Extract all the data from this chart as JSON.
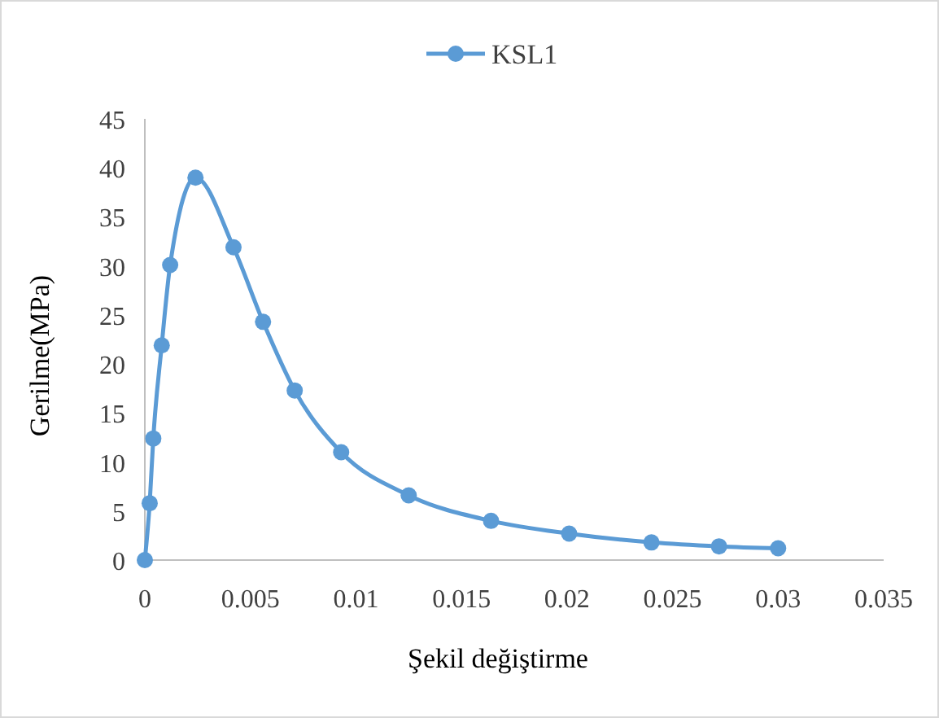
{
  "chart_data": {
    "type": "line",
    "xlabel": "Şekil değiştirme",
    "ylabel": "Gerilme(MPa)",
    "series": [
      {
        "name": "KSL1",
        "color": "#5b9bd5",
        "x": [
          0,
          0.00023,
          0.0004,
          0.0008,
          0.0012,
          0.0024,
          0.0042,
          0.0056,
          0.0071,
          0.0093,
          0.0125,
          0.0164,
          0.0201,
          0.024,
          0.0272,
          0.03
        ],
        "values": [
          0,
          5.8,
          12.4,
          21.9,
          30.1,
          39,
          31.9,
          24.3,
          17.3,
          11,
          6.6,
          4,
          2.7,
          1.8,
          1.4,
          1.2
        ]
      }
    ],
    "xlim": [
      0,
      0.035
    ],
    "xticks": [
      0,
      0.005,
      0.01,
      0.015,
      0.02,
      0.025,
      0.03,
      0.035
    ],
    "ylim": [
      0,
      45
    ],
    "yticks": [
      0,
      5,
      10,
      15,
      20,
      25,
      30,
      35,
      40,
      45
    ],
    "legend": "top",
    "marker": "circle",
    "grid": false
  }
}
